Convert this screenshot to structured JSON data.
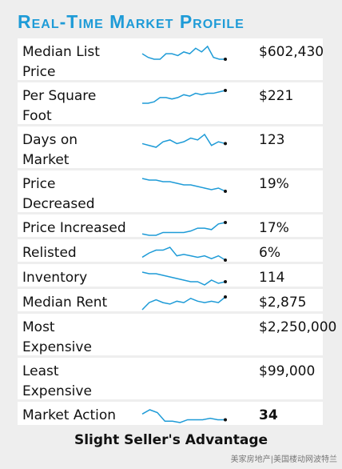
{
  "title": "Real-Time Market Profile",
  "rows": [
    {
      "label": "Median List Price",
      "value": "$602,430",
      "trend": [
        6,
        4,
        3,
        3,
        6,
        6,
        5,
        7,
        6,
        9,
        7,
        10,
        4,
        3,
        3
      ]
    },
    {
      "label": "Per Square Foot",
      "value": "$221",
      "trend": [
        1,
        1,
        2,
        5,
        5,
        4,
        5,
        7,
        6,
        8,
        7,
        8,
        8,
        9,
        10
      ]
    },
    {
      "label": "Days on Market",
      "value": "123",
      "trend": [
        5,
        4,
        3,
        6,
        7,
        5,
        6,
        8,
        7,
        10,
        4,
        6,
        5
      ]
    },
    {
      "label": "Price Decreased",
      "value": "19%",
      "trend": [
        10,
        9,
        9,
        8,
        8,
        7,
        6,
        6,
        5,
        4,
        3,
        4,
        2
      ]
    },
    {
      "label": "Price Increased",
      "value": "17%",
      "trend": [
        2,
        1,
        1,
        3,
        3,
        3,
        3,
        4,
        6,
        6,
        5,
        9,
        10
      ]
    },
    {
      "label": "Relisted",
      "value": "6%",
      "trend": [
        3,
        6,
        8,
        8,
        10,
        4,
        5,
        4,
        3,
        4,
        2,
        4,
        1
      ]
    },
    {
      "label": "Inventory",
      "value": "114",
      "trend": [
        10,
        9,
        9,
        8,
        7,
        6,
        5,
        4,
        4,
        2,
        5,
        3,
        4
      ]
    },
    {
      "label": "Median Rent",
      "value": "$2,875",
      "trend": [
        1,
        6,
        8,
        6,
        5,
        7,
        6,
        9,
        7,
        6,
        7,
        6,
        10
      ]
    },
    {
      "label": "Most Expensive",
      "value": "$2,250,000"
    },
    {
      "label": "Least Expensive",
      "value": "$99,000"
    },
    {
      "label": "Market Action",
      "value": "34",
      "trend": [
        6,
        9,
        7,
        1,
        1,
        0,
        2,
        2,
        2,
        3,
        2,
        2
      ]
    }
  ],
  "footer": "Slight Seller's Advantage",
  "watermark": "美家房地产|美国楼动网波特兰"
}
